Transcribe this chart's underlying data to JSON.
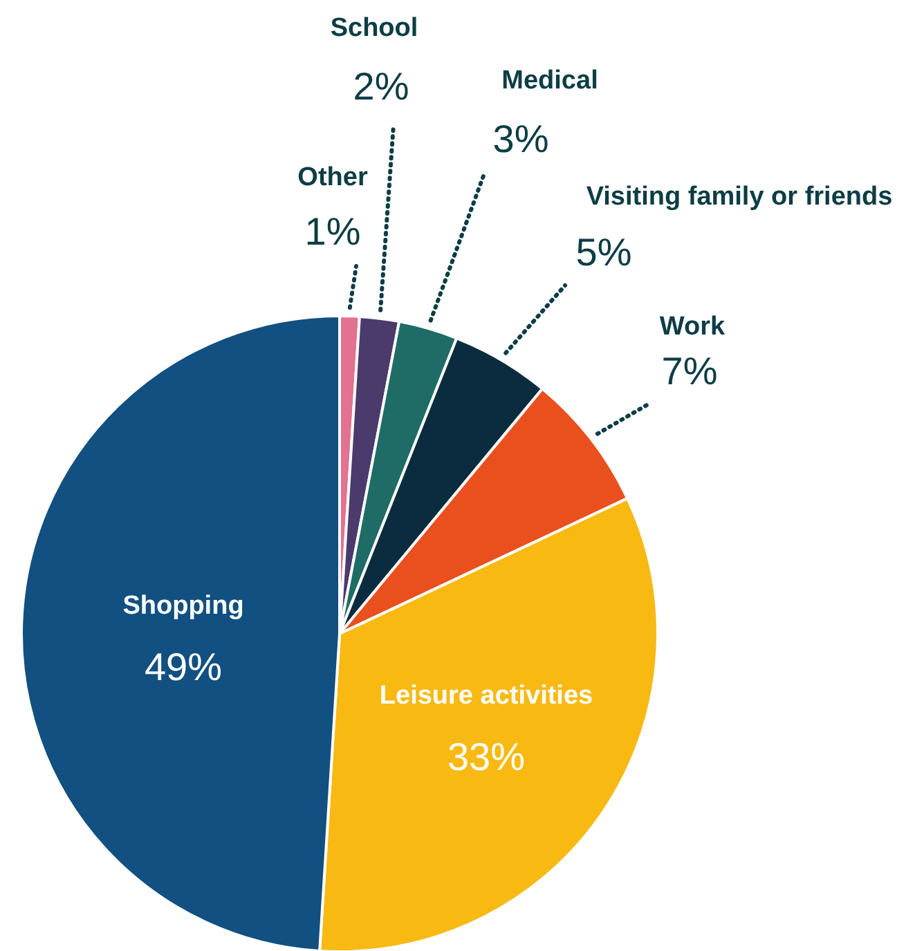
{
  "chart_data": {
    "type": "pie",
    "categories": [
      "Other",
      "School",
      "Medical",
      "Visiting family or friends",
      "Work",
      "Leisure activities",
      "Shopping"
    ],
    "values": [
      1,
      2,
      3,
      5,
      7,
      33,
      49
    ],
    "colors": [
      "#e2728f",
      "#4b3b6c",
      "#1f6b66",
      "#0b2c3e",
      "#e9501e",
      "#f8b913",
      "#115080"
    ],
    "value_labels": [
      "1%",
      "2%",
      "3%",
      "5%",
      "7%",
      "33%",
      "49%"
    ]
  }
}
